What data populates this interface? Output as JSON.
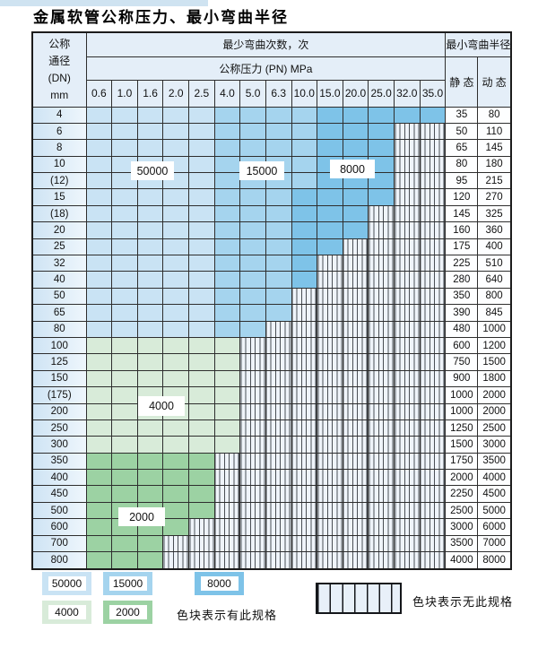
{
  "title": "金属软管公称压力、最小弯曲半径",
  "table": {
    "corner_header_lines": [
      "公称",
      "通径",
      "(DN)",
      "mm"
    ],
    "cycles_header": "最少弯曲次数，次",
    "pressure_header": "公称压力 (PN) MPa",
    "radius_header": "最小弯曲半径",
    "static_header": "静 态",
    "dynamic_header": "动 态",
    "pressure_columns": [
      "0.6",
      "1.0",
      "1.6",
      "2.0",
      "2.5",
      "4.0",
      "5.0",
      "6.3",
      "10.0",
      "15.0",
      "20.0",
      "25.0",
      "32.0",
      "35.0"
    ],
    "rows": [
      {
        "dn": "4",
        "static": "35",
        "dynamic": "80",
        "zones": {
          "50000": [
            1,
            5
          ],
          "15000": [
            6,
            9
          ],
          "8000": [
            10,
            14
          ]
        }
      },
      {
        "dn": "6",
        "static": "50",
        "dynamic": "110",
        "zones": {
          "50000": [
            1,
            5
          ],
          "15000": [
            6,
            9
          ],
          "8000": [
            10,
            12
          ]
        }
      },
      {
        "dn": "8",
        "static": "65",
        "dynamic": "145",
        "zones": {
          "50000": [
            1,
            5
          ],
          "15000": [
            6,
            9
          ],
          "8000": [
            10,
            12
          ]
        }
      },
      {
        "dn": "10",
        "static": "80",
        "dynamic": "180",
        "zones": {
          "50000": [
            1,
            5
          ],
          "15000": [
            6,
            9
          ],
          "8000": [
            10,
            12
          ]
        }
      },
      {
        "dn": "(12)",
        "static": "95",
        "dynamic": "215",
        "zones": {
          "50000": [
            1,
            5
          ],
          "15000": [
            6,
            9
          ],
          "8000": [
            10,
            12
          ]
        }
      },
      {
        "dn": "15",
        "static": "120",
        "dynamic": "270",
        "zones": {
          "50000": [
            1,
            5
          ],
          "15000": [
            6,
            8
          ],
          "8000": [
            9,
            12
          ]
        }
      },
      {
        "dn": "(18)",
        "static": "145",
        "dynamic": "325",
        "zones": {
          "50000": [
            1,
            5
          ],
          "15000": [
            6,
            8
          ],
          "8000": [
            9,
            11
          ]
        }
      },
      {
        "dn": "20",
        "static": "160",
        "dynamic": "360",
        "zones": {
          "50000": [
            1,
            5
          ],
          "15000": [
            6,
            8
          ],
          "8000": [
            9,
            11
          ]
        }
      },
      {
        "dn": "25",
        "static": "175",
        "dynamic": "400",
        "zones": {
          "50000": [
            1,
            5
          ],
          "15000": [
            6,
            8
          ],
          "8000": [
            9,
            10
          ]
        }
      },
      {
        "dn": "32",
        "static": "225",
        "dynamic": "510",
        "zones": {
          "50000": [
            1,
            5
          ],
          "15000": [
            6,
            8
          ],
          "8000": [
            9,
            9
          ]
        }
      },
      {
        "dn": "40",
        "static": "280",
        "dynamic": "640",
        "zones": {
          "50000": [
            1,
            5
          ],
          "15000": [
            6,
            8
          ],
          "8000": [
            9,
            9
          ]
        }
      },
      {
        "dn": "50",
        "static": "350",
        "dynamic": "800",
        "zones": {
          "50000": [
            1,
            5
          ],
          "15000": [
            6,
            8
          ]
        }
      },
      {
        "dn": "65",
        "static": "390",
        "dynamic": "845",
        "zones": {
          "50000": [
            1,
            5
          ],
          "15000": [
            6,
            8
          ]
        }
      },
      {
        "dn": "80",
        "static": "480",
        "dynamic": "1000",
        "zones": {
          "50000": [
            1,
            5
          ],
          "15000": [
            6,
            7
          ]
        }
      },
      {
        "dn": "100",
        "static": "600",
        "dynamic": "1200",
        "zones": {
          "4000": [
            1,
            6
          ]
        }
      },
      {
        "dn": "125",
        "static": "750",
        "dynamic": "1500",
        "zones": {
          "4000": [
            1,
            6
          ]
        }
      },
      {
        "dn": "150",
        "static": "900",
        "dynamic": "1800",
        "zones": {
          "4000": [
            1,
            6
          ]
        }
      },
      {
        "dn": "(175)",
        "static": "1000",
        "dynamic": "2000",
        "zones": {
          "4000": [
            1,
            6
          ]
        }
      },
      {
        "dn": "200",
        "static": "1000",
        "dynamic": "2000",
        "zones": {
          "4000": [
            1,
            6
          ]
        }
      },
      {
        "dn": "250",
        "static": "1250",
        "dynamic": "2500",
        "zones": {
          "4000": [
            1,
            6
          ]
        }
      },
      {
        "dn": "300",
        "static": "1500",
        "dynamic": "3000",
        "zones": {
          "4000": [
            1,
            6
          ]
        }
      },
      {
        "dn": "350",
        "static": "1750",
        "dynamic": "3500",
        "zones": {
          "2000": [
            1,
            5
          ]
        }
      },
      {
        "dn": "400",
        "static": "2000",
        "dynamic": "4000",
        "zones": {
          "2000": [
            1,
            5
          ]
        }
      },
      {
        "dn": "450",
        "static": "2250",
        "dynamic": "4500",
        "zones": {
          "2000": [
            1,
            5
          ]
        }
      },
      {
        "dn": "500",
        "static": "2500",
        "dynamic": "5000",
        "zones": {
          "2000": [
            1,
            5
          ]
        }
      },
      {
        "dn": "600",
        "static": "3000",
        "dynamic": "6000",
        "zones": {
          "2000": [
            1,
            4
          ]
        }
      },
      {
        "dn": "700",
        "static": "3500",
        "dynamic": "7000",
        "zones": {
          "2000": [
            1,
            3
          ]
        }
      },
      {
        "dn": "800",
        "static": "4000",
        "dynamic": "8000",
        "zones": {
          "2000": [
            1,
            3
          ]
        }
      }
    ]
  },
  "zone_colors": {
    "50000": "#c9e3f4",
    "15000": "#a5d4ee",
    "8000": "#7ec3e8",
    "4000": "#d8ebd9",
    "2000": "#9cd2a3"
  },
  "overlay_labels": [
    {
      "text": "50000"
    },
    {
      "text": "15000"
    },
    {
      "text": "8000"
    },
    {
      "text": "4000"
    },
    {
      "text": "2000"
    }
  ],
  "legend": {
    "swatches": [
      {
        "value": "50000",
        "zone": "50000"
      },
      {
        "value": "15000",
        "zone": "15000"
      },
      {
        "value": "8000",
        "zone": "8000"
      },
      {
        "value": "4000",
        "zone": "4000"
      },
      {
        "value": "2000",
        "zone": "2000"
      }
    ],
    "available_label": "色块表示有此规格",
    "unavailable_label": "色块表示无此规格"
  }
}
